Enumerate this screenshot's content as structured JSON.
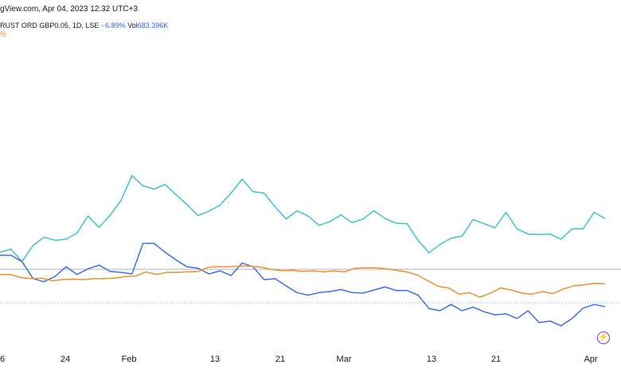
{
  "header": {
    "line1": "gView.com, Apr 04, 2023 12:32 UTC+3",
    "symbol": "RUST ORD GBP0.05, 1D, LSE",
    "change": "−6.89%",
    "vol_label": "Vol",
    "vol_value": "683.396K",
    "line3": "%"
  },
  "icons": {
    "bolt": "lightning-bolt-icon"
  },
  "colors": {
    "teal": "#3bc4d0",
    "blue": "#3a6ff0",
    "orange": "#f28e2b",
    "baseline": "#b2b5be",
    "dotted": "#7aa2ff"
  },
  "chart_data": {
    "type": "line",
    "x_tick_labels": [
      "6",
      "24",
      "Feb",
      "13",
      "21",
      "Mar",
      "13",
      "21",
      "Apr"
    ],
    "series": [
      {
        "color_key": "teal",
        "values": [
          3.3,
          3.9,
          1.5,
          4.6,
          6.2,
          5.6,
          5.8,
          7.0,
          10.3,
          8.1,
          10.4,
          13.3,
          18.1,
          16.1,
          15.5,
          16.4,
          14.4,
          12.5,
          10.4,
          11.2,
          12.4,
          14.7,
          17.4,
          15.0,
          14.7,
          12.1,
          9.7,
          11.3,
          10.3,
          8.5,
          9.2,
          10.5,
          9.0,
          9.7,
          11.3,
          9.8,
          8.9,
          8.8,
          5.6,
          3.2,
          4.8,
          6.0,
          6.4,
          9.6,
          8.8,
          8.0,
          11.0,
          7.8,
          6.8,
          6.7,
          6.8,
          5.8,
          7.8,
          7.8,
          11.0,
          9.8
        ]
      },
      {
        "color_key": "blue",
        "values": [
          2.7,
          2.7,
          1.5,
          -1.8,
          -2.4,
          -1.4,
          0.5,
          -1.0,
          0.1,
          0.8,
          -0.4,
          -0.6,
          -0.9,
          5.0,
          5.0,
          3.3,
          1.8,
          0.5,
          0.2,
          -0.9,
          -0.3,
          -1.2,
          1.2,
          0.5,
          -2.0,
          -1.8,
          -3.2,
          -4.5,
          -5.0,
          -4.5,
          -4.3,
          -3.9,
          -4.5,
          -4.6,
          -4.0,
          -3.4,
          -4.1,
          -4.1,
          -5.0,
          -7.6,
          -8.0,
          -6.8,
          -8.0,
          -7.3,
          -8.2,
          -8.8,
          -8.6,
          -9.5,
          -8.0,
          -10.3,
          -10.0,
          -10.9,
          -9.5,
          -7.5,
          -6.8,
          -7.2
        ]
      },
      {
        "color_key": "orange",
        "values": [
          -1.0,
          -1.0,
          -1.6,
          -1.8,
          -1.7,
          -2.2,
          -2.0,
          -1.9,
          -2.0,
          -1.8,
          -1.8,
          -1.7,
          -1.4,
          -1.3,
          -0.5,
          -1.0,
          -0.6,
          -0.6,
          -0.5,
          -0.4,
          0.4,
          0.5,
          0.5,
          0.6,
          0.6,
          0.4,
          0.0,
          -0.3,
          -0.2,
          -0.4,
          -0.3,
          -0.5,
          -0.3,
          -0.5,
          0.2,
          0.3,
          0.3,
          0.1,
          -0.2,
          -0.5,
          -1.1,
          -2.2,
          -3.3,
          -3.6,
          -4.8,
          -4.5,
          -5.4,
          -4.6,
          -3.6,
          -4.0,
          -4.6,
          -4.8,
          -4.3,
          -4.7,
          -3.8,
          -3.2,
          -3.0,
          -2.7,
          -2.8
        ]
      }
    ]
  }
}
